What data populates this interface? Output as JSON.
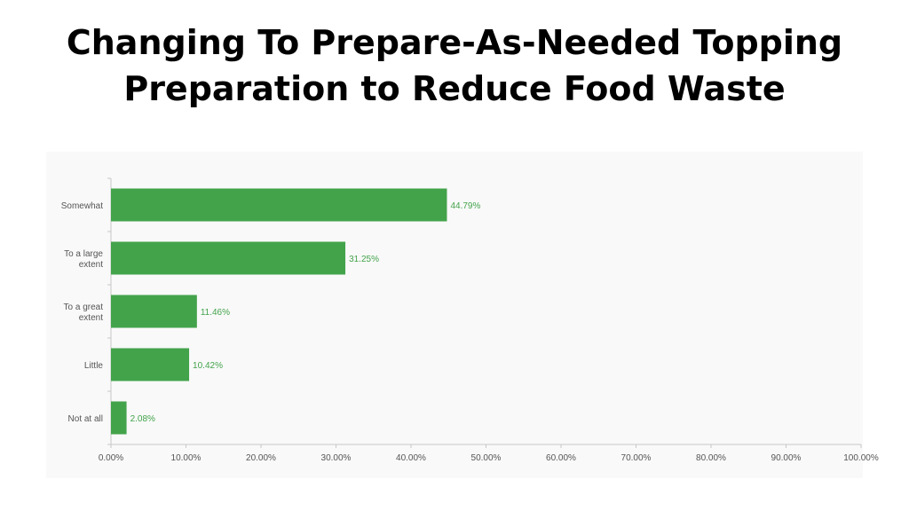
{
  "slide": {
    "title_line1": "Changing To Prepare-As-Needed Topping",
    "title_line2": "Preparation to Reduce Food Waste"
  },
  "colors": {
    "bar": "#43a34b",
    "label": "#43a34b",
    "axis": "#c8c8c8",
    "text": "#555555",
    "panel": "#f9f9f9"
  },
  "chart_data": {
    "type": "bar",
    "orientation": "horizontal",
    "categories": [
      "Somewhat",
      "To a large extent",
      "To a great extent",
      "Little",
      "Not at all"
    ],
    "category_lines": [
      [
        "Somewhat"
      ],
      [
        "To a large",
        "extent"
      ],
      [
        "To a great",
        "extent"
      ],
      [
        "Little"
      ],
      [
        "Not at all"
      ]
    ],
    "values": [
      44.79,
      31.25,
      11.46,
      10.42,
      2.08
    ],
    "value_labels": [
      "44.79%",
      "31.25%",
      "11.46%",
      "10.42%",
      "2.08%"
    ],
    "x_ticks": [
      "0.00%",
      "10.00%",
      "20.00%",
      "30.00%",
      "40.00%",
      "50.00%",
      "60.00%",
      "70.00%",
      "80.00%",
      "90.00%",
      "100.00%"
    ],
    "xlim": [
      0,
      100
    ],
    "grid": false,
    "legend": "none"
  }
}
